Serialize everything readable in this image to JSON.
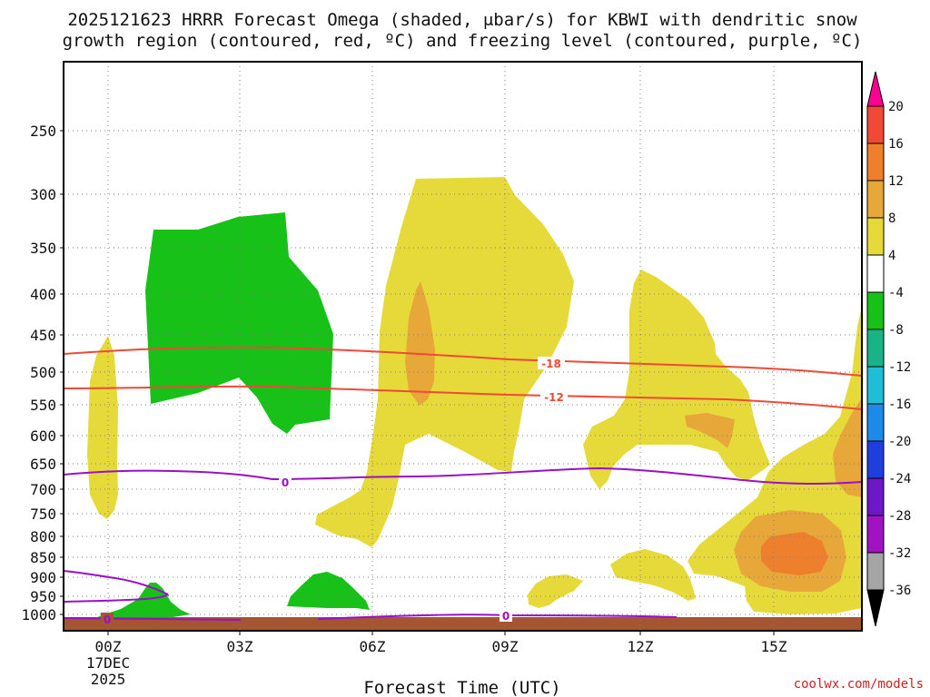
{
  "chart_data": {
    "type": "time-height cross-section (filled contours)",
    "title_line1": "2025121623 HRRR Forecast Omega (shaded, μbar/s) for KBWI with dendritic snow",
    "title_line2": "growth region (contoured, red, ºC) and freezing level (contoured, purple, ºC)",
    "xlabel": "Forecast Time (UTC)",
    "ylabel": "",
    "x_ticks": [
      "00Z",
      "03Z",
      "06Z",
      "09Z",
      "12Z",
      "15Z"
    ],
    "x_date_label": [
      "17DEC",
      "2025"
    ],
    "y_ticks": [
      "250",
      "300",
      "350",
      "400",
      "450",
      "500",
      "550",
      "600",
      "650",
      "700",
      "750",
      "800",
      "850",
      "900",
      "950",
      "1000"
    ],
    "xlim_hours": [
      -1,
      17
    ],
    "ylim_hPa": [
      200,
      1000
    ],
    "grid": "dotted",
    "colorbar": {
      "levels": [
        "20",
        "16",
        "12",
        "8",
        "4",
        "-4",
        "-8",
        "-12",
        "-16",
        "-20",
        "-24",
        "-28",
        "-32",
        "-36"
      ],
      "colors": [
        "#ff0090",
        "#f04a36",
        "#ee7f2c",
        "#e8a839",
        "#e6da3a",
        "#ffffff",
        "#17c117",
        "#19b385",
        "#1fbdd8",
        "#1c8ae6",
        "#1f3fdc",
        "#6d17c8",
        "#a312c2",
        "#a5a5a5",
        "#000000"
      ]
    },
    "contours": [
      {
        "name": "-18 °C isotherm (dendritic growth top)",
        "label": "-18",
        "color": "#f04a36"
      },
      {
        "name": "-12 °C isotherm (dendritic growth bottom)",
        "label": "-12",
        "color": "#f04a36"
      },
      {
        "name": "0 °C freezing level",
        "label": "0",
        "color": "#9a10c8"
      },
      {
        "name": "0 °C near-surface",
        "label": "0",
        "color": "#9a10c8"
      }
    ],
    "terrain_color": "#a55532",
    "credit": "coolwx.com/models"
  }
}
